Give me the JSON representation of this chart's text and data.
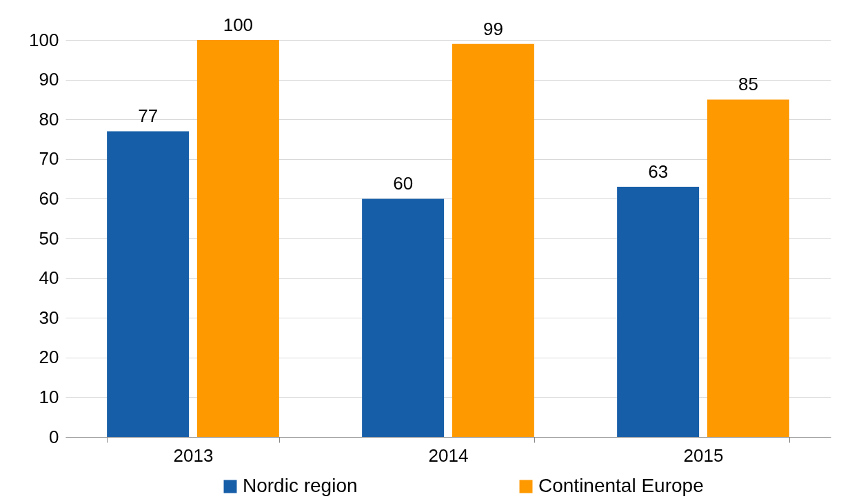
{
  "chart_data": {
    "type": "bar",
    "categories": [
      "2013",
      "2014",
      "2015"
    ],
    "series": [
      {
        "name": "Nordic region",
        "color": "#175ea8",
        "values": [
          77,
          60,
          63
        ]
      },
      {
        "name": "Continental Europe",
        "color": "#ff9900",
        "values": [
          100,
          99,
          85
        ]
      }
    ],
    "ylim": [
      0,
      100
    ],
    "yticks": [
      0,
      10,
      20,
      30,
      40,
      50,
      60,
      70,
      80,
      90,
      100
    ],
    "grid": "y",
    "legend": "bottom",
    "data_labels": true
  }
}
